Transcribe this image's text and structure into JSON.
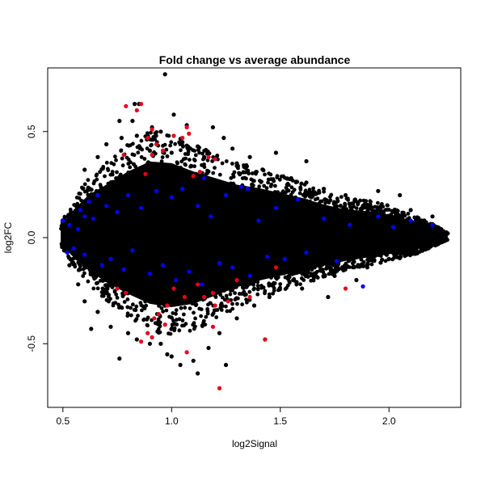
{
  "chart_data": {
    "type": "scatter",
    "title": "Fold change vs average abundance",
    "xlabel": "log2Signal",
    "ylabel": "log2FC",
    "xlim": [
      0.43,
      2.33
    ],
    "ylim": [
      -0.8,
      0.8
    ],
    "x_ticks": [
      0.5,
      1.0,
      1.5,
      2.0
    ],
    "x_tick_labels": [
      "0.5",
      "1.0",
      "1.5",
      "2.0"
    ],
    "y_ticks": [
      -0.5,
      0.0,
      0.5
    ],
    "y_tick_labels": [
      "-0.5",
      "0.0",
      "0.5"
    ],
    "grid": false,
    "legend": "none",
    "colors": {
      "background": "#000000",
      "blue": "#0000ff",
      "red": "#e8001c"
    },
    "series": [
      {
        "color": "#000000",
        "points": [
          [
            0.97,
            0.77
          ],
          [
            0.85,
            0.63
          ],
          [
            0.83,
            0.63
          ],
          [
            1.01,
            0.58
          ],
          [
            0.82,
            0.55
          ],
          [
            1.07,
            0.53
          ],
          [
            0.76,
            0.55
          ],
          [
            0.91,
            0.52
          ],
          [
            1.19,
            0.52
          ],
          [
            0.77,
            0.47
          ],
          [
            0.84,
            0.48
          ],
          [
            0.95,
            0.5
          ],
          [
            1.24,
            0.47
          ],
          [
            1.36,
            0.38
          ],
          [
            1.12,
            0.43
          ],
          [
            0.66,
            0.38
          ],
          [
            0.6,
            0.32
          ],
          [
            1.28,
            0.42
          ],
          [
            0.7,
            0.44
          ],
          [
            1.05,
            0.45
          ],
          [
            1.3,
            0.35
          ],
          [
            1.0,
            0.4
          ],
          [
            1.15,
            0.38
          ],
          [
            0.9,
            0.41
          ],
          [
            1.42,
            0.32
          ],
          [
            1.55,
            0.28
          ],
          [
            1.7,
            0.23
          ],
          [
            1.62,
            0.26
          ],
          [
            1.8,
            0.2
          ],
          [
            1.95,
            0.22
          ],
          [
            2.05,
            0.2
          ],
          [
            2.1,
            0.13
          ],
          [
            2.2,
            0.1
          ],
          [
            2.27,
            0.02
          ],
          [
            2.24,
            0.04
          ],
          [
            2.18,
            -0.02
          ],
          [
            2.12,
            -0.06
          ],
          [
            2.0,
            -0.1
          ],
          [
            1.9,
            -0.14
          ],
          [
            1.75,
            -0.18
          ],
          [
            1.6,
            -0.24
          ],
          [
            1.45,
            -0.28
          ],
          [
            1.38,
            -0.32
          ],
          [
            1.3,
            -0.38
          ],
          [
            1.22,
            -0.45
          ],
          [
            1.17,
            -0.52
          ],
          [
            1.1,
            -0.58
          ],
          [
            1.04,
            -0.6
          ],
          [
            1.0,
            -0.56
          ],
          [
            0.95,
            -0.5
          ],
          [
            0.9,
            -0.5
          ],
          [
            0.84,
            -0.48
          ],
          [
            0.8,
            -0.45
          ],
          [
            0.76,
            -0.57
          ],
          [
            0.72,
            -0.42
          ],
          [
            0.66,
            -0.35
          ],
          [
            0.63,
            -0.43
          ],
          [
            0.6,
            -0.3
          ],
          [
            0.57,
            -0.22
          ],
          [
            0.53,
            -0.13
          ],
          [
            0.5,
            0.02
          ],
          [
            0.51,
            0.04
          ],
          [
            0.52,
            -0.04
          ],
          [
            0.54,
            0.1
          ],
          [
            0.56,
            0.15
          ],
          [
            0.61,
            0.22
          ],
          [
            1.12,
            -0.64
          ],
          [
            0.98,
            -0.55
          ],
          [
            1.25,
            -0.6
          ],
          [
            1.43,
            -0.48
          ],
          [
            1.72,
            -0.28
          ],
          [
            1.85,
            -0.2
          ],
          [
            2.15,
            0.07
          ],
          [
            1.48,
            0.4
          ],
          [
            1.62,
            0.36
          ]
        ]
      },
      {
        "color": "#0000ff",
        "points": [
          [
            0.5,
            0.08
          ],
          [
            0.53,
            0.06
          ],
          [
            0.55,
            -0.05
          ],
          [
            0.52,
            -0.07
          ],
          [
            0.6,
            0.1
          ],
          [
            0.58,
            0.13
          ],
          [
            0.64,
            0.09
          ],
          [
            0.66,
            0.2
          ],
          [
            0.62,
            0.17
          ],
          [
            0.7,
            0.15
          ],
          [
            0.72,
            -0.1
          ],
          [
            0.75,
            0.12
          ],
          [
            0.78,
            -0.15
          ],
          [
            0.8,
            0.2
          ],
          [
            0.82,
            -0.06
          ],
          [
            0.86,
            0.14
          ],
          [
            0.9,
            -0.17
          ],
          [
            0.93,
            0.22
          ],
          [
            0.96,
            -0.13
          ],
          [
            1.0,
            0.19
          ],
          [
            1.02,
            -0.2
          ],
          [
            1.05,
            0.23
          ],
          [
            1.08,
            -0.16
          ],
          [
            1.12,
            0.15
          ],
          [
            1.14,
            -0.22
          ],
          [
            1.18,
            0.1
          ],
          [
            1.22,
            -0.12
          ],
          [
            1.25,
            0.2
          ],
          [
            1.28,
            -0.14
          ],
          [
            1.32,
            0.24
          ],
          [
            1.36,
            -0.18
          ],
          [
            1.4,
            0.08
          ],
          [
            1.44,
            -0.09
          ],
          [
            1.48,
            0.14
          ],
          [
            1.52,
            -0.1
          ],
          [
            1.58,
            0.18
          ],
          [
            1.62,
            -0.07
          ],
          [
            1.7,
            0.09
          ],
          [
            1.76,
            -0.11
          ],
          [
            1.82,
            0.06
          ],
          [
            1.88,
            -0.23
          ],
          [
            1.95,
            0.1
          ],
          [
            2.02,
            0.05
          ],
          [
            2.1,
            0.08
          ],
          [
            2.2,
            0.06
          ],
          [
            1.35,
            0.23
          ],
          [
            1.15,
            0.28
          ],
          [
            0.68,
            -0.13
          ],
          [
            0.57,
            0.04
          ],
          [
            0.6,
            -0.08
          ]
        ]
      },
      {
        "color": "#e8001c",
        "points": [
          [
            0.79,
            0.62
          ],
          [
            0.86,
            0.63
          ],
          [
            0.84,
            0.6
          ],
          [
            1.07,
            0.52
          ],
          [
            1.08,
            0.49
          ],
          [
            1.05,
            0.47
          ],
          [
            1.01,
            0.48
          ],
          [
            0.91,
            0.51
          ],
          [
            0.89,
            0.47
          ],
          [
            0.93,
            0.44
          ],
          [
            0.96,
            0.41
          ],
          [
            0.91,
            0.39
          ],
          [
            0.78,
            0.39
          ],
          [
            1.17,
            0.38
          ],
          [
            1.2,
            0.37
          ],
          [
            1.13,
            0.31
          ],
          [
            0.88,
            0.3
          ],
          [
            1.1,
            0.29
          ],
          [
            1.8,
            -0.24
          ],
          [
            1.36,
            -0.28
          ],
          [
            1.19,
            -0.26
          ],
          [
            1.26,
            -0.3
          ],
          [
            1.2,
            -0.32
          ],
          [
            1.15,
            -0.28
          ],
          [
            1.01,
            -0.24
          ],
          [
            1.06,
            -0.28
          ],
          [
            0.98,
            -0.32
          ],
          [
            0.94,
            -0.36
          ],
          [
            0.92,
            -0.38
          ],
          [
            0.97,
            -0.41
          ],
          [
            0.89,
            -0.45
          ],
          [
            0.91,
            -0.47
          ],
          [
            0.86,
            -0.49
          ],
          [
            1.07,
            -0.54
          ],
          [
            1.19,
            -0.42
          ],
          [
            1.43,
            -0.48
          ],
          [
            1.22,
            -0.71
          ],
          [
            0.79,
            -0.26
          ],
          [
            0.75,
            -0.24
          ],
          [
            1.12,
            -0.22
          ],
          [
            1.3,
            -0.2
          ],
          [
            1.48,
            -0.14
          ]
        ]
      }
    ]
  }
}
